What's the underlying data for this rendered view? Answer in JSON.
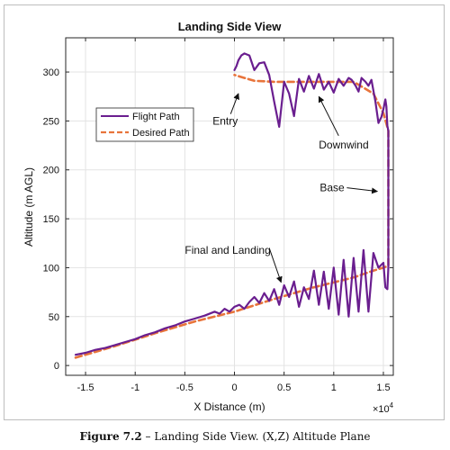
{
  "chart_data": {
    "type": "line",
    "title": "Landing Side View",
    "xlabel": "X Distance (m)",
    "ylabel": "Altitude (m AGL)",
    "x_multiplier_label": "×10",
    "x_multiplier_exp": "4",
    "xlim": [
      -1.7,
      1.6
    ],
    "ylim": [
      -10,
      335
    ],
    "xticks": [
      -1.5,
      -1,
      -0.5,
      0,
      0.5,
      1,
      1.5
    ],
    "xtick_labels": [
      "-1.5",
      "-1",
      "-0.5",
      "0",
      "0.5",
      "1",
      "1.5"
    ],
    "yticks": [
      0,
      50,
      100,
      150,
      200,
      250,
      300
    ],
    "ytick_labels": [
      "0",
      "50",
      "100",
      "150",
      "200",
      "250",
      "300"
    ],
    "grid": true,
    "legend_placement": "upper-left",
    "series": [
      {
        "name": "Flight Path",
        "color": "#6a1e8f",
        "style": "solid",
        "x": [
          -1.6,
          -1.5,
          -1.4,
          -1.3,
          -1.2,
          -1.1,
          -1.0,
          -0.9,
          -0.8,
          -0.7,
          -0.6,
          -0.5,
          -0.4,
          -0.3,
          -0.2,
          -0.15,
          -0.1,
          -0.05,
          0.0,
          0.05,
          0.1,
          0.15,
          0.2,
          0.25,
          0.3,
          0.35,
          0.4,
          0.45,
          0.5,
          0.55,
          0.6,
          0.65,
          0.7,
          0.75,
          0.8,
          0.85,
          0.9,
          0.95,
          1.0,
          1.05,
          1.1,
          1.15,
          1.2,
          1.25,
          1.3,
          1.35,
          1.4,
          1.45,
          1.5,
          1.52,
          1.54,
          1.55,
          1.55,
          1.55,
          1.54,
          1.53,
          1.52,
          1.5,
          1.48,
          1.45,
          1.42,
          1.38,
          1.35,
          1.32,
          1.28,
          1.25,
          1.22,
          1.18,
          1.15,
          1.1,
          1.05,
          1.0,
          0.95,
          0.9,
          0.85,
          0.8,
          0.75,
          0.7,
          0.65,
          0.6,
          0.55,
          0.5,
          0.45,
          0.4,
          0.35,
          0.3,
          0.25,
          0.2,
          0.15,
          0.1,
          0.07,
          0.04,
          0.02,
          0.0
        ],
        "y": [
          11,
          13,
          16,
          18,
          21,
          24,
          27,
          31,
          34,
          38,
          41,
          45,
          48,
          51,
          55,
          53,
          58,
          55,
          60,
          62,
          58,
          65,
          70,
          64,
          74,
          66,
          78,
          62,
          82,
          70,
          86,
          60,
          80,
          68,
          97,
          62,
          96,
          58,
          100,
          52,
          108,
          50,
          110,
          55,
          118,
          55,
          115,
          100,
          105,
          80,
          78,
          100,
          170,
          240,
          245,
          265,
          272,
          262,
          254,
          248,
          270,
          292,
          286,
          290,
          294,
          280,
          286,
          292,
          294,
          286,
          293,
          279,
          290,
          282,
          298,
          283,
          296,
          280,
          293,
          255,
          278,
          290,
          244,
          270,
          297,
          310,
          309,
          302,
          317,
          319,
          317,
          312,
          306,
          302
        ]
      },
      {
        "name": "Desired Path",
        "color": "#e8743b",
        "style": "dashed",
        "x": [
          -1.6,
          -1.2,
          -0.8,
          -0.4,
          0.0,
          0.4,
          0.8,
          1.2,
          1.4,
          1.5,
          1.55,
          1.55,
          1.55,
          1.5,
          1.4,
          1.2,
          0.8,
          0.4,
          0.2,
          0.0
        ],
        "y": [
          8,
          20,
          33,
          45,
          55,
          68,
          80,
          90,
          97,
          100,
          102,
          200,
          240,
          258,
          278,
          290,
          290,
          290,
          291,
          297
        ]
      }
    ],
    "annotations": [
      {
        "text": "Entry",
        "x": -0.22,
        "y": 246,
        "arrow_to": [
          0.04,
          278
        ]
      },
      {
        "text": "Downwind",
        "x": 0.85,
        "y": 222,
        "arrow_to": [
          0.85,
          275
        ]
      },
      {
        "text": "Base",
        "x": 0.86,
        "y": 178,
        "arrow_to": [
          1.44,
          178
        ]
      },
      {
        "text": "Final and Landing",
        "x": -0.5,
        "y": 114,
        "arrow_to": [
          0.47,
          85
        ]
      }
    ]
  },
  "caption": {
    "label": "Figure 7.2",
    "text": " – Landing Side View. (X,Z) Altitude Plane"
  }
}
